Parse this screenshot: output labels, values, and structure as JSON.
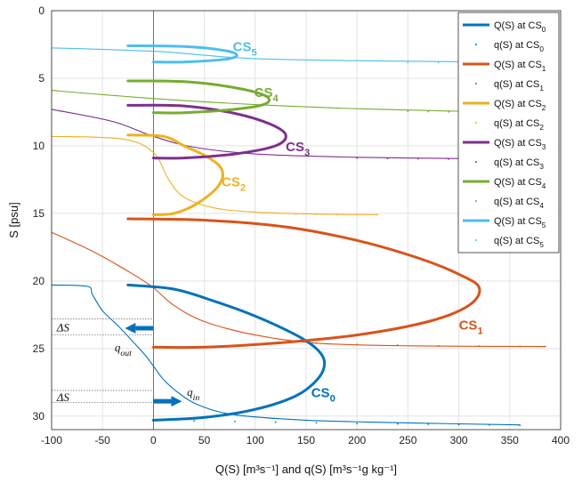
{
  "chart_data": {
    "type": "line",
    "xlim": [
      -100,
      400
    ],
    "ylim": [
      0,
      31
    ],
    "y_reversed": true,
    "grid": true,
    "legend_position": "top-right",
    "xticks": [
      -100,
      -50,
      0,
      50,
      100,
      150,
      200,
      250,
      300,
      350,
      400
    ],
    "yticks": [
      0,
      5,
      10,
      15,
      20,
      25,
      30
    ],
    "xlabel": "Q(S) [m³s⁻¹]  and  q(S) [m³s⁻¹g kg⁻¹]",
    "ylabel": "S [psu]",
    "colors": {
      "CS0": "#0072BD",
      "CS1": "#D95319",
      "CS2": "#EDB120",
      "CS3": "#7E2F8E",
      "CS4": "#77AC30",
      "CS5": "#4DBEEE"
    },
    "series": [
      {
        "name": "Q(S) at CS0",
        "label": "CS0",
        "color": "#0072BD",
        "style": "line",
        "points": [
          [
            -25,
            20.3
          ],
          [
            20,
            20.6
          ],
          [
            60,
            21.5
          ],
          [
            100,
            22.6
          ],
          [
            140,
            24.0
          ],
          [
            160,
            25.0
          ],
          [
            168,
            26.0
          ],
          [
            162,
            27.2
          ],
          [
            140,
            28.5
          ],
          [
            100,
            29.5
          ],
          [
            50,
            30.1
          ],
          [
            0,
            30.3
          ]
        ]
      },
      {
        "name": "q(S) at CS0",
        "color": "#0072BD",
        "style": "dots",
        "points": [
          [
            0,
            30.3
          ],
          [
            40,
            30.35
          ],
          [
            80,
            30.4
          ],
          [
            120,
            30.45
          ],
          [
            160,
            30.5
          ],
          [
            200,
            30.55
          ],
          [
            240,
            30.58
          ],
          [
            270,
            30.6
          ],
          [
            300,
            30.62
          ],
          [
            330,
            30.65
          ],
          [
            360,
            30.68
          ]
        ]
      },
      {
        "name": "Q(S) at CS1",
        "label": "CS1",
        "color": "#D95319",
        "style": "line",
        "points": [
          [
            -25,
            15.4
          ],
          [
            50,
            15.5
          ],
          [
            130,
            16.0
          ],
          [
            200,
            17.0
          ],
          [
            260,
            18.3
          ],
          [
            300,
            19.5
          ],
          [
            320,
            20.5
          ],
          [
            310,
            21.8
          ],
          [
            270,
            23.0
          ],
          [
            200,
            24.0
          ],
          [
            120,
            24.6
          ],
          [
            50,
            24.9
          ],
          [
            0,
            24.9
          ]
        ]
      },
      {
        "name": "q(S) at CS1",
        "color": "#D95319",
        "style": "dots",
        "points": [
          [
            160,
            24.6
          ],
          [
            200,
            24.7
          ],
          [
            240,
            24.75
          ],
          [
            280,
            24.8
          ],
          [
            320,
            24.82
          ],
          [
            360,
            24.84
          ],
          [
            385,
            24.85
          ]
        ]
      },
      {
        "name": "Q(S) at CS2",
        "label": "CS2",
        "color": "#EDB120",
        "style": "line",
        "points": [
          [
            -25,
            9.2
          ],
          [
            10,
            9.3
          ],
          [
            30,
            10.0
          ],
          [
            50,
            10.7
          ],
          [
            65,
            11.5
          ],
          [
            68,
            12.3
          ],
          [
            60,
            13.3
          ],
          [
            40,
            14.4
          ],
          [
            20,
            15.0
          ],
          [
            0,
            15.1
          ]
        ]
      },
      {
        "name": "q(S) at CS2",
        "color": "#EDB120",
        "style": "dots",
        "points": [
          [
            140,
            15.05
          ],
          [
            160,
            15.07
          ],
          [
            180,
            15.08
          ],
          [
            200,
            15.09
          ],
          [
            220,
            15.1
          ]
        ]
      },
      {
        "name": "Q(S) at CS3",
        "label": "CS3",
        "color": "#7E2F8E",
        "style": "line",
        "points": [
          [
            -25,
            7.0
          ],
          [
            30,
            7.05
          ],
          [
            80,
            7.6
          ],
          [
            115,
            8.4
          ],
          [
            130,
            9.2
          ],
          [
            120,
            10.0
          ],
          [
            80,
            10.6
          ],
          [
            30,
            10.9
          ],
          [
            0,
            10.9
          ]
        ]
      },
      {
        "name": "q(S) at CS3",
        "color": "#7E2F8E",
        "style": "dots",
        "points": [
          [
            200,
            10.9
          ],
          [
            230,
            10.93
          ],
          [
            260,
            10.96
          ],
          [
            290,
            10.98
          ],
          [
            310,
            11.0
          ]
        ]
      },
      {
        "name": "Q(S) at CS4",
        "label": "CS4",
        "color": "#77AC30",
        "style": "line",
        "points": [
          [
            -25,
            5.2
          ],
          [
            30,
            5.25
          ],
          [
            80,
            5.7
          ],
          [
            110,
            6.3
          ],
          [
            110,
            6.9
          ],
          [
            80,
            7.3
          ],
          [
            30,
            7.55
          ],
          [
            0,
            7.55
          ]
        ]
      },
      {
        "name": "q(S) at CS4",
        "color": "#77AC30",
        "style": "dots",
        "points": [
          [
            250,
            7.45
          ],
          [
            270,
            7.47
          ],
          [
            290,
            7.49
          ],
          [
            305,
            7.5
          ]
        ]
      },
      {
        "name": "Q(S) at CS5",
        "label": "CS5",
        "color": "#4DBEEE",
        "style": "line",
        "points": [
          [
            -25,
            2.6
          ],
          [
            30,
            2.65
          ],
          [
            70,
            2.95
          ],
          [
            82,
            3.3
          ],
          [
            70,
            3.6
          ],
          [
            30,
            3.8
          ],
          [
            0,
            3.8
          ]
        ]
      },
      {
        "name": "q(S) at CS5",
        "color": "#4DBEEE",
        "style": "dots",
        "points": [
          [
            250,
            3.82
          ],
          [
            280,
            3.83
          ],
          [
            310,
            3.84
          ],
          [
            340,
            3.84
          ],
          [
            370,
            3.85
          ]
        ]
      }
    ],
    "thin_curves": [
      {
        "color": "#4DBEEE",
        "points": [
          [
            -100,
            2.75
          ],
          [
            0,
            3.0
          ],
          [
            50,
            3.3
          ],
          [
            100,
            3.55
          ],
          [
            200,
            3.7
          ],
          [
            300,
            3.78
          ],
          [
            370,
            3.82
          ]
        ]
      },
      {
        "color": "#77AC30",
        "points": [
          [
            -100,
            5.9
          ],
          [
            0,
            6.5
          ],
          [
            100,
            6.95
          ],
          [
            200,
            7.25
          ],
          [
            305,
            7.45
          ]
        ]
      },
      {
        "color": "#7E2F8E",
        "points": [
          [
            -100,
            7.3
          ],
          [
            -40,
            8.2
          ],
          [
            0,
            9.3
          ],
          [
            40,
            10.1
          ],
          [
            100,
            10.6
          ],
          [
            200,
            10.85
          ],
          [
            310,
            10.95
          ]
        ]
      },
      {
        "color": "#EDB120",
        "points": [
          [
            -100,
            9.3
          ],
          [
            -30,
            9.5
          ],
          [
            0,
            10.5
          ],
          [
            15,
            12.5
          ],
          [
            30,
            13.8
          ],
          [
            60,
            14.6
          ],
          [
            100,
            14.9
          ],
          [
            160,
            15.05
          ],
          [
            220,
            15.1
          ]
        ]
      },
      {
        "color": "#D95319",
        "points": [
          [
            -100,
            16.4
          ],
          [
            -60,
            17.8
          ],
          [
            -20,
            19.5
          ],
          [
            0,
            20.5
          ],
          [
            20,
            21.8
          ],
          [
            50,
            23.0
          ],
          [
            100,
            24.0
          ],
          [
            160,
            24.6
          ],
          [
            250,
            24.8
          ],
          [
            385,
            24.85
          ]
        ]
      },
      {
        "color": "#0072BD",
        "points": [
          [
            -100,
            20.3
          ],
          [
            -65,
            20.4
          ],
          [
            -60,
            21.0
          ],
          [
            -50,
            22.2
          ],
          [
            -35,
            23.3
          ],
          [
            -20,
            24.5
          ],
          [
            -8,
            25.5
          ],
          [
            0,
            26.3
          ],
          [
            10,
            27.3
          ],
          [
            25,
            28.3
          ],
          [
            45,
            29.2
          ],
          [
            80,
            29.9
          ],
          [
            150,
            30.3
          ],
          [
            250,
            30.5
          ],
          [
            360,
            30.65
          ]
        ]
      }
    ],
    "annotations": {
      "cs_labels": [
        {
          "base": "CS",
          "sub": "0",
          "x": 155,
          "y": 28.6,
          "color": "#0072BD"
        },
        {
          "base": "CS",
          "sub": "1",
          "x": 300,
          "y": 23.6,
          "color": "#D95319"
        },
        {
          "base": "CS",
          "sub": "2",
          "x": 67,
          "y": 13.0,
          "color": "#EDB120"
        },
        {
          "base": "CS",
          "sub": "3",
          "x": 130,
          "y": 10.4,
          "color": "#7E2F8E"
        },
        {
          "base": "CS",
          "sub": "4",
          "x": 99,
          "y": 6.4,
          "color": "#77AC30"
        },
        {
          "base": "CS",
          "sub": "5",
          "x": 78,
          "y": 3.0,
          "color": "#4DBEEE"
        }
      ],
      "delta_s_upper": {
        "text": "ΔS",
        "y_top": 22.8,
        "y_bottom": 24.0,
        "label_x": -95
      },
      "delta_s_lower": {
        "text": "ΔS",
        "y_top": 28.1,
        "y_bottom": 29.0,
        "label_x": -95
      },
      "q_out": {
        "base": "q",
        "sub": "out",
        "x": -38,
        "y": 25.2
      },
      "q_in": {
        "base": "q",
        "sub": "in",
        "x": 33,
        "y": 28.5
      },
      "arrow_out": {
        "y": 23.5,
        "x_from": 0,
        "x_to": -28
      },
      "arrow_in": {
        "y": 28.9,
        "x_from": 0,
        "x_to": 28
      }
    }
  }
}
